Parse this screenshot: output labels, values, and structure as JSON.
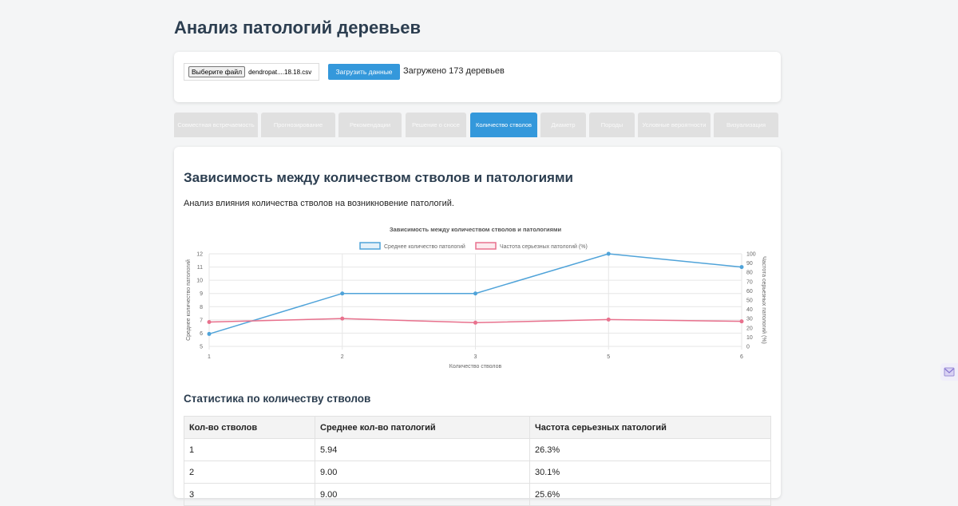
{
  "page": {
    "title": "Анализ патологий деревьев"
  },
  "upload": {
    "choose_file_label": "Выберите файл",
    "file_name": "dendropat....18.18.csv",
    "load_button": "Загрузить данные",
    "status": "Загружено 173 деревьев"
  },
  "tabs": [
    {
      "label": "Совместная встречаемость",
      "active": false
    },
    {
      "label": "Прогнозирование",
      "active": false
    },
    {
      "label": "Рекомендации",
      "active": false
    },
    {
      "label": "Решение о сносе",
      "active": false
    },
    {
      "label": "Количество стволов",
      "active": true
    },
    {
      "label": "Диаметр",
      "active": false
    },
    {
      "label": "Породы",
      "active": false
    },
    {
      "label": "Условные вероятности",
      "active": false
    },
    {
      "label": "Визуализация",
      "active": false
    }
  ],
  "section": {
    "title": "Зависимость между количеством стволов и патологиями",
    "description": "Анализ влияния количества стволов на возникновение патологий."
  },
  "chart_data": {
    "type": "line",
    "title": "Зависимость между количеством стволов и патологиями",
    "xlabel": "Количество стволов",
    "ylabel": "Среднее количество патологий",
    "y2label": "Частота серьезных патологий (%)",
    "categories": [
      "1",
      "2",
      "3",
      "5",
      "6"
    ],
    "ylim": [
      5,
      12
    ],
    "y2lim": [
      0,
      100
    ],
    "grid": true,
    "legend_position": "top-center",
    "series": [
      {
        "name": "Среднее количество патологий",
        "axis": "left",
        "color": "#4fa3d9",
        "values": [
          5.94,
          9.0,
          9.0,
          12.0,
          11.0
        ]
      },
      {
        "name": "Частота серьезных патологий (%)",
        "axis": "right",
        "color": "#e8718d",
        "values": [
          26.3,
          30.1,
          25.6,
          29.0,
          27.0
        ]
      }
    ]
  },
  "stats": {
    "title": "Статистика по количеству стволов",
    "columns": [
      "Кол-во стволов",
      "Среднее кол-во патологий",
      "Частота серьезных патологий"
    ],
    "rows": [
      [
        "1",
        "5.94",
        "26.3%"
      ],
      [
        "2",
        "9.00",
        "30.1%"
      ],
      [
        "3",
        "9.00",
        "25.6%"
      ]
    ]
  },
  "colors": {
    "accent": "#3498db",
    "heading": "#2c3e50",
    "tab_inactive": "#e0e0e0"
  },
  "side_widget": {
    "icon": "mail-icon"
  }
}
